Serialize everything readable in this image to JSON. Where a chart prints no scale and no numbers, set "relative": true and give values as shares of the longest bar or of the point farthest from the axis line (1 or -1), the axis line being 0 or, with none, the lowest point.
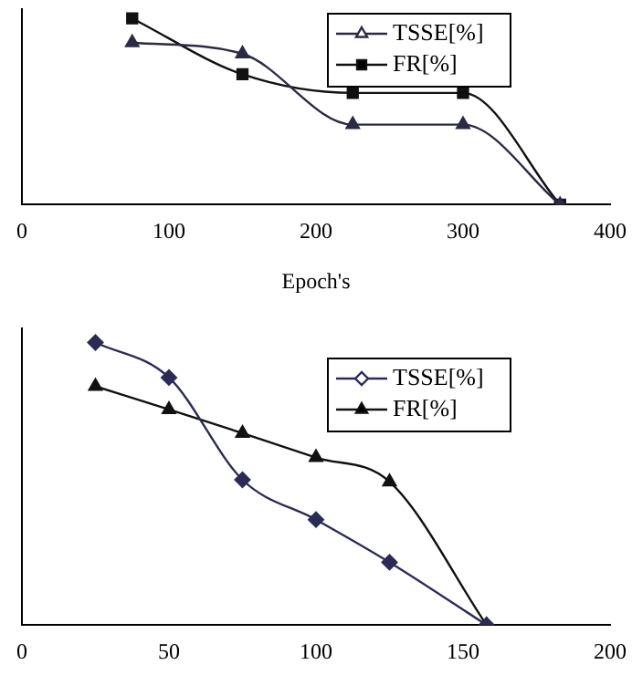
{
  "chart_data": [
    {
      "type": "line",
      "relative": true,
      "xlabel": "Epoch's",
      "xlim": [
        0,
        400
      ],
      "xticks": [
        0,
        100,
        200,
        300,
        400
      ],
      "legend": "top right",
      "grid": false,
      "series": [
        {
          "name": "TSSE[%]",
          "color": "#2b2b44",
          "marker": "triangle",
          "x": [
            75,
            150,
            225,
            300,
            366
          ],
          "values": [
            0.87,
            0.81,
            0.43,
            0.43,
            0
          ]
        },
        {
          "name": "FR[%]",
          "color": "#111111",
          "marker": "square",
          "x": [
            75,
            150,
            225,
            300,
            366
          ],
          "values": [
            1,
            0.7,
            0.6,
            0.6,
            0
          ]
        }
      ]
    },
    {
      "type": "line",
      "relative": true,
      "xlim": [
        0,
        200
      ],
      "xticks": [
        0,
        50,
        100,
        150,
        200
      ],
      "legend": "top right",
      "grid": false,
      "series": [
        {
          "name": "TSSE[%]",
          "color": "#2b2b55",
          "marker": "diamond",
          "x": [
            25,
            50,
            75,
            100,
            125,
            158
          ],
          "values": [
            1,
            0.876,
            0.514,
            0.373,
            0.222,
            0
          ]
        },
        {
          "name": "FR[%]",
          "color": "#111111",
          "marker": "triangle",
          "x": [
            25,
            50,
            75,
            100,
            125,
            158
          ],
          "values": [
            0.845,
            0.763,
            0.679,
            0.593,
            0.507,
            0
          ]
        }
      ]
    }
  ]
}
